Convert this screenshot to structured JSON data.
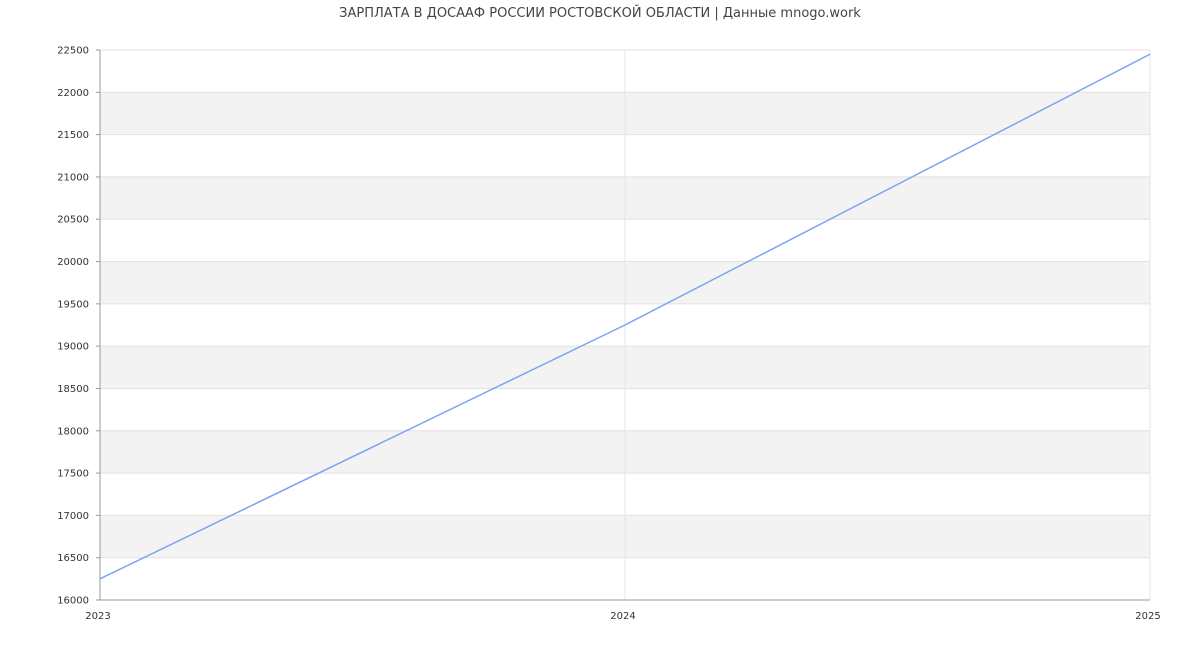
{
  "chart_data": {
    "type": "line",
    "title": "ЗАРПЛАТА В ДОСААФ РОССИИ РОСТОВСКОЙ ОБЛАСТИ | Данные mnogo.work",
    "x": [
      "2023",
      "2024",
      "2025"
    ],
    "series": [
      {
        "values": [
          16250,
          19250,
          22450
        ],
        "color": "#7aa3f5"
      }
    ],
    "xlabel": "",
    "ylabel": "",
    "ylim": [
      16000,
      22500
    ],
    "yticks": [
      16000,
      16500,
      17000,
      17500,
      18000,
      18500,
      19000,
      19500,
      20000,
      20500,
      21000,
      21500,
      22000,
      22500
    ],
    "grid": true,
    "band_color": "#f3f3f3"
  }
}
